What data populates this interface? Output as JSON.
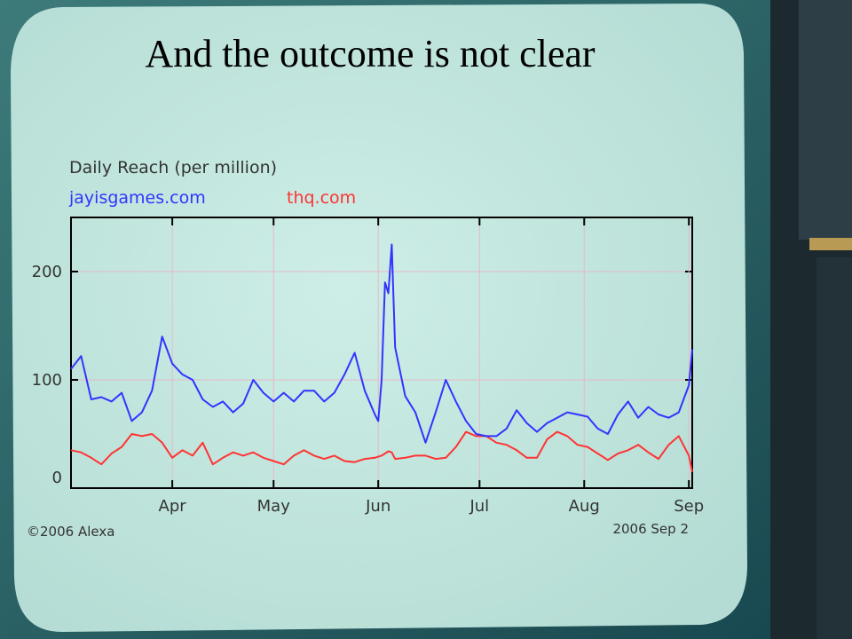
{
  "chart_data": {
    "type": "line",
    "title": "And the outcome is not clear",
    "subtitle": "Daily Reach (per million)",
    "source": "©2006 Alexa",
    "date_note": "2006 Sep 2",
    "x": [
      0,
      3,
      6,
      9,
      12,
      15,
      18,
      21,
      24,
      27,
      30,
      33,
      36,
      39,
      42,
      45,
      48,
      51,
      54,
      57,
      60,
      63,
      66,
      69,
      72,
      75,
      78,
      81,
      84,
      87,
      90,
      91,
      92,
      93,
      94,
      95,
      96,
      99,
      102,
      105,
      108,
      111,
      114,
      117,
      120,
      123,
      126,
      129,
      132,
      135,
      138,
      141,
      144,
      147,
      150,
      153,
      156,
      159,
      162,
      165,
      168,
      171,
      174,
      177,
      180,
      183,
      184
    ],
    "series": [
      {
        "name": "jayisgames.com",
        "color": "#3333ff",
        "values": [
          110,
          122,
          82,
          84,
          80,
          88,
          62,
          70,
          90,
          140,
          115,
          105,
          100,
          82,
          75,
          80,
          70,
          78,
          100,
          88,
          80,
          88,
          80,
          90,
          90,
          80,
          88,
          105,
          125,
          90,
          68,
          62,
          100,
          190,
          180,
          225,
          130,
          85,
          70,
          42,
          70,
          100,
          80,
          62,
          50,
          48,
          48,
          55,
          72,
          60,
          52,
          60,
          65,
          70,
          68,
          66,
          55,
          50,
          68,
          80,
          65,
          75,
          68,
          65,
          70,
          95,
          128
        ]
      },
      {
        "name": "thq.com",
        "color": "#ff3333",
        "values": [
          35,
          33,
          28,
          22,
          32,
          38,
          50,
          48,
          50,
          42,
          28,
          35,
          30,
          42,
          22,
          28,
          33,
          30,
          33,
          28,
          25,
          22,
          30,
          35,
          30,
          27,
          30,
          25,
          24,
          27,
          28,
          29,
          30,
          32,
          34,
          33,
          27,
          28,
          30,
          30,
          27,
          28,
          38,
          52,
          48,
          48,
          42,
          40,
          35,
          28,
          28,
          45,
          52,
          48,
          40,
          38,
          32,
          26,
          32,
          35,
          40,
          33,
          27,
          40,
          48,
          30,
          15
        ]
      }
    ],
    "xlim": [
      0,
      184
    ],
    "xticks": [
      {
        "value": 30,
        "label": "Apr"
      },
      {
        "value": 60,
        "label": "May"
      },
      {
        "value": 91,
        "label": "Jun"
      },
      {
        "value": 121,
        "label": "Jul"
      },
      {
        "value": 152,
        "label": "Aug"
      },
      {
        "value": 183,
        "label": "Sep"
      }
    ],
    "ylim": [
      0,
      250
    ],
    "yticks": [
      0,
      100,
      200
    ],
    "grid": true,
    "grid_color": "#e8b8c8"
  }
}
